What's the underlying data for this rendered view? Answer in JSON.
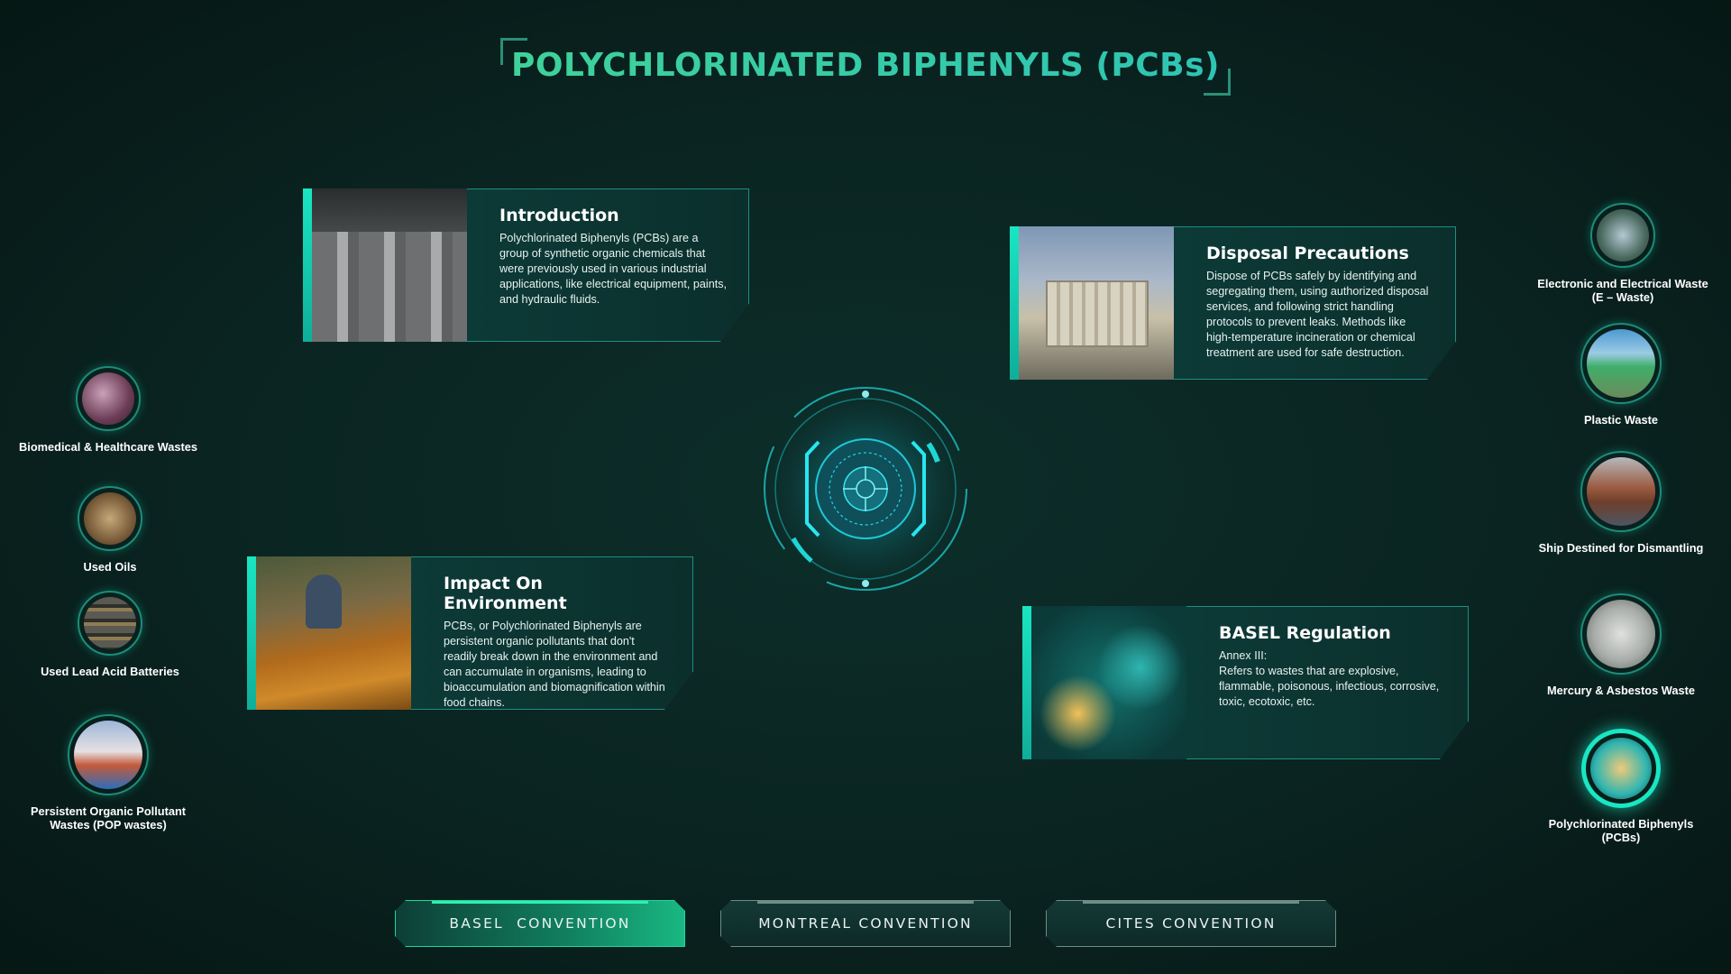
{
  "header": {
    "title": "POLYCHLORINATED BIPHENYLS (PCBs)"
  },
  "cards": {
    "introduction": {
      "heading": "Introduction",
      "text": "Polychlorinated Biphenyls (PCBs) are a group of synthetic organic chemicals that were previously used in various industrial applications, like electrical equipment, paints, and hydraulic fluids."
    },
    "disposal": {
      "heading": "Disposal Precautions",
      "text": "Dispose of PCBs safely by identifying and segregating them, using authorized disposal services, and following strict handling protocols to prevent leaks. Methods like high-temperature incineration or chemical treatment are used for safe destruction."
    },
    "impact": {
      "heading": "Impact On Environment",
      "text": "PCBs, or Polychlorinated Biphenyls are persistent organic pollutants that don't readily break down in the environment and can accumulate in organisms, leading to bioaccumulation and biomagnification within food chains."
    },
    "basel": {
      "heading": "BASEL Regulation",
      "annex": "Annex III:",
      "text": "Refers to wastes that are explosive, flammable, poisonous, infectious, corrosive, toxic, ecotoxic, etc."
    }
  },
  "left_wastes": [
    {
      "label": "Biomedical & Healthcare Wastes"
    },
    {
      "label": "Used Oils"
    },
    {
      "label": "Used Lead Acid Batteries"
    },
    {
      "label": "Persistent Organic Pollutant Wastes (POP wastes)"
    }
  ],
  "right_wastes": [
    {
      "label": "Electronic and Electrical Waste (E – Waste)"
    },
    {
      "label": "Plastic Waste"
    },
    {
      "label": "Ship Destined for Dismantling"
    },
    {
      "label": "Mercury & Asbestos Waste"
    },
    {
      "label": "Polychlorinated Biphenyls (PCBs)"
    }
  ],
  "nav": {
    "basel": "BASEL  CONVENTION",
    "montreal": "MONTREAL CONVENTION",
    "cites": "CITES CONVENTION",
    "active": "basel"
  },
  "colors": {
    "accent": "#19e6c3",
    "title_gradient_start": "#3fd29a",
    "background": "#0a2421"
  }
}
